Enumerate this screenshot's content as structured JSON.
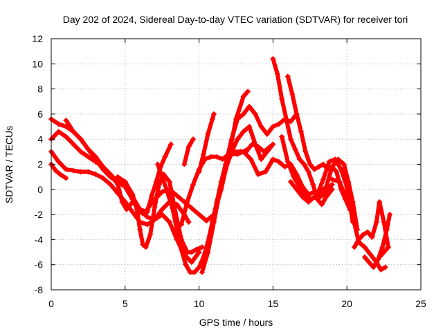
{
  "chart_data": {
    "type": "scatter",
    "title": "Day 202 of 2024, Sidereal Day-to-day VTEC variation (SDTVAR) for receiver tori",
    "xlabel": "GPS time / hours",
    "ylabel": "SDTVAR / TECUs",
    "xlim": [
      0,
      25
    ],
    "ylim": [
      -8,
      12
    ],
    "xticks": [
      "0",
      "5",
      "10",
      "15",
      "20",
      "25"
    ],
    "yticks": [
      "-8",
      "-6",
      "-4",
      "-2",
      "0",
      "2",
      "4",
      "6",
      "8",
      "10",
      "12"
    ],
    "grid": true,
    "marker": "plus",
    "color": "#ff0000",
    "series": [
      {
        "x": [
          0,
          0.5,
          1,
          1.5,
          2,
          2.5,
          3,
          3.5,
          4,
          4.5,
          5,
          5.5,
          6,
          6.3,
          6.6,
          7,
          7.5,
          8,
          8.5,
          9,
          9.5,
          10,
          10.5,
          11
        ],
        "y": [
          5.6,
          5.2,
          5.0,
          4.6,
          4.0,
          3.2,
          2.4,
          1.6,
          1.0,
          0.6,
          0.2,
          -0.8,
          -1.8,
          -2.0,
          -1.4,
          -0.8,
          -0.2,
          0.0,
          -0.5,
          -1.0,
          -1.5,
          -2.0,
          -2.5,
          -2.0
        ]
      },
      {
        "x": [
          0,
          0.5,
          1,
          1.5,
          2,
          2.5,
          3,
          3.5,
          4,
          4.5,
          5,
          5.5,
          6,
          6.5,
          7,
          7.5,
          8,
          8.5,
          9,
          9.3
        ],
        "y": [
          3.0,
          2.2,
          1.6,
          1.5,
          1.4,
          1.4,
          1.2,
          0.9,
          0.4,
          -0.3,
          -1.0,
          -1.8,
          -2.6,
          -2.8,
          -2.4,
          -1.6,
          -1.0,
          -1.2,
          -2.0,
          -2.6
        ]
      },
      {
        "x": [
          0,
          0.3,
          0.6,
          1
        ],
        "y": [
          2.0,
          1.5,
          1.2,
          0.9
        ]
      },
      {
        "x": [
          0,
          0.5,
          1,
          1.5,
          2,
          2.5,
          3,
          3.5,
          4,
          4.5,
          5,
          5.5,
          6,
          6.5,
          7,
          7.5,
          8,
          8.5,
          9,
          9.5,
          10
        ],
        "y": [
          4.0,
          4.6,
          4.2,
          3.6,
          3.0,
          2.6,
          2.2,
          1.8,
          1.2,
          0.6,
          0.4,
          -0.6,
          -1.6,
          -2.2,
          -2.4,
          -2.0,
          -2.6,
          -4.0,
          -5.2,
          -5.8,
          -5.0
        ]
      },
      {
        "x": [
          4.5,
          5,
          5.5,
          5.8,
          6,
          6.2,
          6.4,
          6.7,
          7,
          7.3,
          7.6,
          8,
          8.4,
          8.8,
          9.2,
          9.5,
          9.8,
          10.2
        ],
        "y": [
          1.0,
          0.6,
          -0.4,
          -1.6,
          -3.2,
          -4.4,
          -4.6,
          -3.6,
          -1.4,
          0.4,
          1.2,
          0.6,
          -1.8,
          -4.0,
          -5.0,
          -5.0,
          -4.8,
          -4.6
        ]
      },
      {
        "x": [
          1,
          1.5,
          2,
          2.5,
          3,
          3.5,
          4,
          4.5,
          4.8,
          5.1,
          5.5,
          6,
          6.5,
          6.8,
          7.1,
          7.4,
          7.7,
          8.1
        ],
        "y": [
          5.5,
          4.6,
          4.0,
          3.2,
          2.6,
          1.8,
          1.2,
          0.4,
          -1.0,
          -1.6,
          -1.0,
          -1.6,
          -1.8,
          -0.5,
          0.6,
          1.8,
          2.6,
          3.6
        ]
      },
      {
        "x": [
          7.2,
          7.5,
          7.8,
          8.2,
          8.5,
          8.8,
          9.1,
          9.4,
          9.7,
          10,
          10.3,
          10.6,
          10.9,
          11.2,
          11.5,
          11.8,
          12.2,
          12.6,
          13,
          13.3,
          13.6,
          14,
          14.4,
          14.8
        ],
        "y": [
          2.0,
          1.0,
          0.0,
          -1.5,
          -3.2,
          -4.8,
          -6.0,
          -6.6,
          -6.6,
          -6.2,
          -5.4,
          -4.2,
          -2.6,
          -1.0,
          0.6,
          2.0,
          2.8,
          2.8,
          3.0,
          3.2,
          3.6,
          3.4,
          3.0,
          3.4
        ]
      },
      {
        "x": [
          8.8,
          9.2,
          9.6,
          10,
          10.4,
          10.8,
          11.2,
          11.6,
          12,
          12.4,
          12.8,
          13.2
        ],
        "y": [
          -2.8,
          -1.0,
          0.4,
          1.6,
          2.4,
          2.6,
          2.6,
          2.4,
          2.8,
          3.0,
          3.0,
          3.0
        ]
      },
      {
        "x": [
          9,
          9.3,
          9.6
        ],
        "y": [
          2.0,
          3.4,
          4.0
        ]
      },
      {
        "x": [
          10,
          10.3,
          10.6,
          10.9,
          11
        ],
        "y": [
          1.4,
          2.8,
          4.4,
          5.6,
          6.0
        ]
      },
      {
        "x": [
          10.2,
          10.6,
          11,
          11.4,
          11.8,
          12.2,
          12.6,
          13,
          13.4,
          13.8,
          14.2,
          14.6,
          15,
          15.4,
          15.8,
          16.2,
          16.6
        ],
        "y": [
          -6.6,
          -5.0,
          -2.6,
          -0.2,
          2.0,
          4.0,
          5.6,
          6.0,
          6.6,
          6.0,
          5.0,
          4.4,
          5.0,
          5.2,
          5.6,
          5.4,
          6.0
        ]
      },
      {
        "x": [
          11,
          11.5,
          12,
          12.5,
          13,
          13.3
        ],
        "y": [
          -2.0,
          0.0,
          2.6,
          5.6,
          7.4,
          7.8
        ]
      },
      {
        "x": [
          11.4,
          11.8,
          12.2,
          12.6,
          13,
          13.4,
          13.8,
          14.2,
          14.6,
          15
        ],
        "y": [
          0.0,
          1.6,
          3.0,
          4.0,
          4.6,
          5.0,
          3.6,
          2.4,
          3.0,
          3.6
        ]
      },
      {
        "x": [
          13,
          13.5,
          14,
          14.5,
          15,
          15.4,
          15.8,
          16.2,
          16.6,
          17,
          17.4,
          17.8,
          18.2,
          18.6,
          19
        ],
        "y": [
          3.0,
          2.4,
          1.2,
          1.4,
          2.4,
          2.2,
          1.8,
          2.0,
          1.2,
          0.2,
          -0.4,
          -0.2,
          -0.6,
          -0.2,
          0.4
        ]
      },
      {
        "x": [
          15,
          15.3,
          15.6,
          15.9,
          16.2,
          16.5,
          16.8,
          17.1,
          17.4,
          17.7,
          18,
          18.3,
          18.6,
          19
        ],
        "y": [
          10.4,
          9.2,
          7.2,
          5.6,
          4.0,
          3.2,
          2.4,
          2.0,
          1.4,
          0.4,
          -0.8,
          -1.2,
          -0.6,
          0.0
        ]
      },
      {
        "x": [
          16,
          16.3,
          16.6,
          16.9,
          17.2,
          17.5,
          17.8,
          18.1,
          18.4,
          18.7,
          19,
          19.3,
          19.6,
          19.9,
          20.2
        ],
        "y": [
          9.0,
          7.6,
          6.0,
          4.6,
          3.0,
          2.0,
          1.6,
          1.8,
          2.0,
          1.6,
          1.8,
          1.4,
          0.0,
          -0.8,
          -1.6
        ]
      },
      {
        "x": [
          15.6,
          16,
          16.4,
          16.8,
          17.2,
          17.6,
          18,
          18.4,
          18.8,
          19.2,
          19.6,
          20,
          20.4
        ],
        "y": [
          4.2,
          2.2,
          1.0,
          0.2,
          -0.4,
          -0.8,
          -0.4,
          0.8,
          2.2,
          2.4,
          1.6,
          0.2,
          -2.6
        ]
      },
      {
        "x": [
          16.2,
          16.6,
          17,
          17.4,
          17.8,
          18.2,
          18.6,
          19,
          19.4,
          19.8,
          20.1,
          20.4,
          20.7
        ],
        "y": [
          0.6,
          0.0,
          -0.6,
          -1.0,
          -0.6,
          -0.2,
          0.2,
          1.8,
          2.4,
          2.0,
          0.6,
          -1.0,
          -3.2
        ]
      },
      {
        "x": [
          19,
          19.5,
          20,
          20.4,
          20.8,
          21.2,
          21.6,
          22,
          22.3,
          22.6
        ],
        "y": [
          0.8,
          0.6,
          -0.8,
          -2.2,
          -4.2,
          -4.6,
          -5.2,
          -5.8,
          -6.4,
          -6.2
        ]
      },
      {
        "x": [
          20.5,
          20.8,
          21.1,
          21.4,
          21.7,
          22,
          22.2,
          22.5,
          22.8
        ],
        "y": [
          -4.6,
          -4.0,
          -3.6,
          -3.4,
          -3.8,
          -2.6,
          -1.0,
          -2.6,
          -4.6
        ]
      },
      {
        "x": [
          21.2,
          21.5,
          21.8,
          22.1,
          22.4,
          22.7,
          22.9
        ],
        "y": [
          -5.4,
          -5.8,
          -6.2,
          -5.6,
          -4.6,
          -3.2,
          -2.0
        ]
      },
      {
        "x": [
          22.2,
          22.5,
          22.8
        ],
        "y": [
          -5.4,
          -5.0,
          -4.6
        ]
      }
    ]
  }
}
